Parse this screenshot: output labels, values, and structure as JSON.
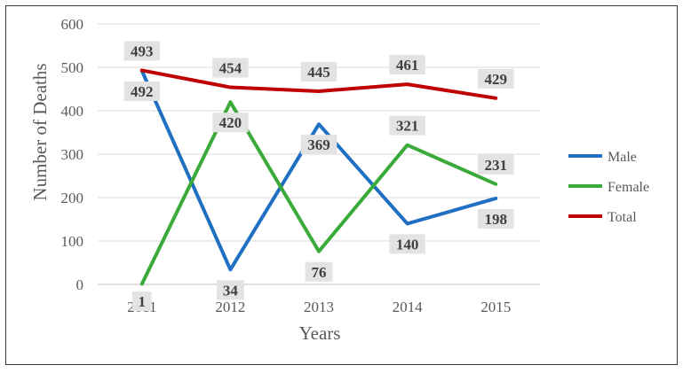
{
  "chart_data": {
    "type": "line",
    "title": "",
    "xlabel": "Years",
    "ylabel": "Number of Deaths",
    "categories": [
      "2011",
      "2012",
      "2013",
      "2014",
      "2015"
    ],
    "ylim": [
      0,
      600
    ],
    "yticks": [
      0,
      100,
      200,
      300,
      400,
      500,
      600
    ],
    "grid": true,
    "legend_position": "right",
    "series": [
      {
        "name": "Male",
        "color": "#1f6fc2",
        "values": [
          492,
          34,
          369,
          140,
          198
        ]
      },
      {
        "name": "Female",
        "color": "#3aaa3a",
        "values": [
          1,
          420,
          76,
          321,
          231
        ]
      },
      {
        "name": "Total",
        "color": "#c00000",
        "values": [
          493,
          454,
          445,
          461,
          429
        ]
      }
    ]
  }
}
